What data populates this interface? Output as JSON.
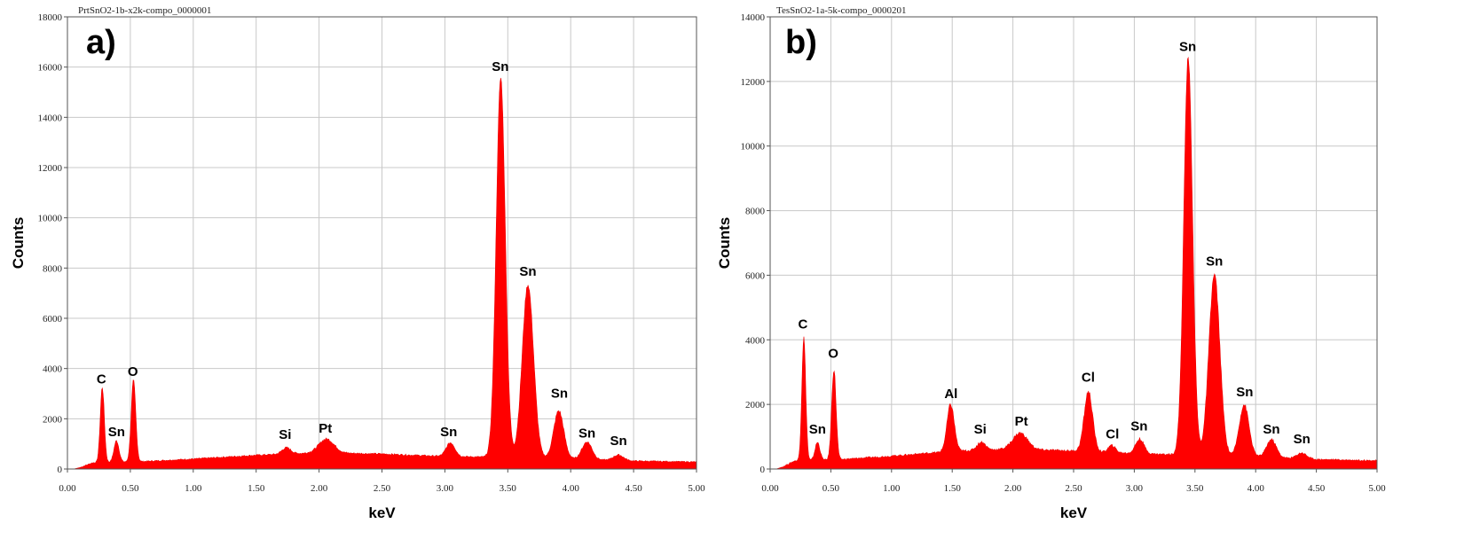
{
  "chart_data": [
    {
      "type": "area",
      "panel": "a)",
      "title": "PrtSnO2-1b-x2k-compo_0000001",
      "xlabel": "keV",
      "ylabel": "Counts",
      "xlim": [
        0,
        5
      ],
      "ylim": [
        0,
        18000
      ],
      "xticks": [
        "0.00",
        "0.50",
        "1.00",
        "1.50",
        "2.00",
        "2.50",
        "3.00",
        "3.50",
        "4.00",
        "4.50",
        "5.00"
      ],
      "yticks": [
        "0",
        "2000",
        "4000",
        "6000",
        "8000",
        "10000",
        "12000",
        "14000",
        "16000",
        "18000"
      ],
      "grid": true,
      "background": {
        "points": [
          [
            0.05,
            0
          ],
          [
            0.1,
            60
          ],
          [
            0.2,
            250
          ],
          [
            0.6,
            300
          ],
          [
            1.0,
            400
          ],
          [
            1.5,
            550
          ],
          [
            2.0,
            650
          ],
          [
            2.5,
            600
          ],
          [
            3.0,
            500
          ],
          [
            3.3,
            480
          ],
          [
            4.0,
            400
          ],
          [
            4.5,
            320
          ],
          [
            5.0,
            280
          ]
        ]
      },
      "peaks": [
        {
          "center": 0.277,
          "height": 3000,
          "width": 0.016
        },
        {
          "center": 0.39,
          "height": 850,
          "width": 0.02
        },
        {
          "center": 0.525,
          "height": 3200,
          "width": 0.018
        },
        {
          "center": 1.74,
          "height": 250,
          "width": 0.035
        },
        {
          "center": 2.06,
          "height": 550,
          "width": 0.06
        },
        {
          "center": 3.045,
          "height": 550,
          "width": 0.035
        },
        {
          "center": 3.444,
          "height": 15100,
          "width": 0.036
        },
        {
          "center": 3.66,
          "height": 6900,
          "width": 0.045
        },
        {
          "center": 3.905,
          "height": 1900,
          "width": 0.04
        },
        {
          "center": 4.13,
          "height": 700,
          "width": 0.04
        },
        {
          "center": 4.38,
          "height": 220,
          "width": 0.04
        }
      ],
      "annotations": [
        {
          "text": "C",
          "x": 0.27,
          "y": 3400
        },
        {
          "text": "Sn",
          "x": 0.39,
          "y": 1300
        },
        {
          "text": "O",
          "x": 0.52,
          "y": 3700
        },
        {
          "text": "Si",
          "x": 1.73,
          "y": 1200
        },
        {
          "text": "Pt",
          "x": 2.05,
          "y": 1450
        },
        {
          "text": "Sn",
          "x": 3.03,
          "y": 1300
        },
        {
          "text": "Sn",
          "x": 3.44,
          "y": 15850
        },
        {
          "text": "Sn",
          "x": 3.66,
          "y": 7700
        },
        {
          "text": "Sn",
          "x": 3.91,
          "y": 2850
        },
        {
          "text": "Sn",
          "x": 4.13,
          "y": 1250
        },
        {
          "text": "Sn",
          "x": 4.38,
          "y": 950
        }
      ]
    },
    {
      "type": "area",
      "panel": "b)",
      "title": "TesSnO2-1a-5k-compo_0000201",
      "xlabel": "keV",
      "ylabel": "Counts",
      "xlim": [
        0,
        5
      ],
      "ylim": [
        0,
        14000
      ],
      "xticks": [
        "0.00",
        "0.50",
        "1.00",
        "1.50",
        "2.00",
        "2.50",
        "3.00",
        "3.50",
        "4.00",
        "4.50",
        "5.00"
      ],
      "yticks": [
        "0",
        "2000",
        "4000",
        "6000",
        "8000",
        "10000",
        "12000",
        "14000"
      ],
      "grid": true,
      "background": {
        "points": [
          [
            0.05,
            0
          ],
          [
            0.1,
            60
          ],
          [
            0.2,
            250
          ],
          [
            0.6,
            300
          ],
          [
            1.0,
            400
          ],
          [
            1.5,
            550
          ],
          [
            2.0,
            620
          ],
          [
            2.5,
            560
          ],
          [
            3.0,
            480
          ],
          [
            3.3,
            450
          ],
          [
            4.0,
            380
          ],
          [
            4.5,
            300
          ],
          [
            5.0,
            260
          ]
        ]
      },
      "peaks": [
        {
          "center": 0.277,
          "height": 3800,
          "width": 0.016
        },
        {
          "center": 0.39,
          "height": 550,
          "width": 0.02
        },
        {
          "center": 0.525,
          "height": 2800,
          "width": 0.018
        },
        {
          "center": 1.487,
          "height": 1450,
          "width": 0.03
        },
        {
          "center": 1.74,
          "height": 250,
          "width": 0.035
        },
        {
          "center": 2.06,
          "height": 500,
          "width": 0.06
        },
        {
          "center": 2.622,
          "height": 1850,
          "width": 0.035
        },
        {
          "center": 2.815,
          "height": 220,
          "width": 0.03
        },
        {
          "center": 3.045,
          "height": 450,
          "width": 0.035
        },
        {
          "center": 3.444,
          "height": 12300,
          "width": 0.036
        },
        {
          "center": 3.66,
          "height": 5600,
          "width": 0.045
        },
        {
          "center": 3.905,
          "height": 1600,
          "width": 0.04
        },
        {
          "center": 4.13,
          "height": 550,
          "width": 0.04
        },
        {
          "center": 4.38,
          "height": 180,
          "width": 0.04
        }
      ],
      "annotations": [
        {
          "text": "C",
          "x": 0.27,
          "y": 4350
        },
        {
          "text": "Sn",
          "x": 0.39,
          "y": 1100
        },
        {
          "text": "O",
          "x": 0.52,
          "y": 3450
        },
        {
          "text": "Al",
          "x": 1.49,
          "y": 2200
        },
        {
          "text": "Si",
          "x": 1.73,
          "y": 1100
        },
        {
          "text": "Pt",
          "x": 2.07,
          "y": 1350
        },
        {
          "text": "Cl",
          "x": 2.62,
          "y": 2700
        },
        {
          "text": "Cl",
          "x": 2.82,
          "y": 950
        },
        {
          "text": "Sn",
          "x": 3.04,
          "y": 1200
        },
        {
          "text": "Sn",
          "x": 3.44,
          "y": 12950
        },
        {
          "text": "Sn",
          "x": 3.66,
          "y": 6300
        },
        {
          "text": "Sn",
          "x": 3.91,
          "y": 2250
        },
        {
          "text": "Sn",
          "x": 4.13,
          "y": 1100
        },
        {
          "text": "Sn",
          "x": 4.38,
          "y": 800
        }
      ]
    }
  ]
}
